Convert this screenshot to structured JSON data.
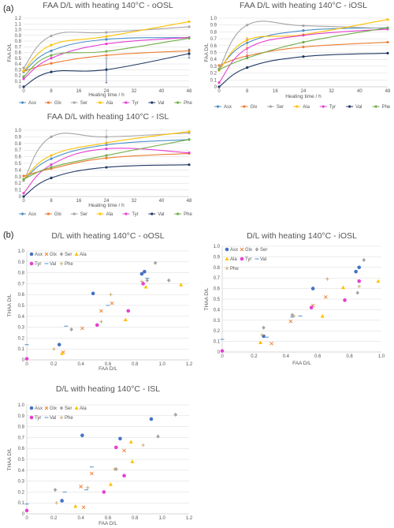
{
  "section_labels": [
    "(a)",
    "(b)"
  ],
  "colors": {
    "Asx": "#4a90c8",
    "Glx": "#ed7d31",
    "Ser": "#a5a5a5",
    "Ala": "#ffc000",
    "Tyr": "#e53fd3",
    "Val": "#203864",
    "Phe": "#70ad47",
    "ValB": "#5b9bd5",
    "AsxB": "#4472c4",
    "PheB": "#c9a86a"
  },
  "chart_data": [
    {
      "id": "a-oOSL",
      "type": "line",
      "title": "FAA D/L with heating 140°C - oOSL",
      "xlabel": "Heating time / h",
      "ylabel": "FAA D/L",
      "x": [
        0,
        8,
        24,
        48
      ],
      "xticks": [
        0,
        8,
        16,
        24,
        32,
        40,
        48
      ],
      "xlim": [
        0,
        48
      ],
      "ylim": [
        0,
        1.2
      ],
      "yticks": [
        0,
        0.1,
        0.2,
        0.3,
        0.4,
        0.5,
        0.6,
        0.7,
        0.8,
        0.9,
        1.0,
        1.1,
        1.2
      ],
      "legend_position": "bottom",
      "series": [
        {
          "name": "Asx",
          "values": [
            0.26,
            0.63,
            0.83,
            0.86
          ]
        },
        {
          "name": "Glx",
          "values": [
            0.27,
            0.41,
            0.55,
            0.63
          ]
        },
        {
          "name": "Ser",
          "values": [
            0.33,
            0.89,
            0.95,
            1.05
          ]
        },
        {
          "name": "Ala",
          "values": [
            0.28,
            0.73,
            0.88,
            1.14
          ]
        },
        {
          "name": "Tyr",
          "values": [
            0.14,
            0.5,
            0.75,
            0.86
          ]
        },
        {
          "name": "Val",
          "values": [
            0.0,
            0.26,
            0.3,
            0.58
          ]
        },
        {
          "name": "Phe",
          "values": [
            0.18,
            0.55,
            0.62,
            0.85
          ]
        }
      ],
      "error_bars": [
        {
          "series": "Val",
          "x": 24,
          "low": 0.07,
          "high": 0.5
        },
        {
          "series": "Val",
          "x": 48,
          "low": 0.5,
          "high": 0.66
        }
      ]
    },
    {
      "id": "a-iOSL",
      "type": "line",
      "title": "FAA D/L with heating 140°C - iOSL",
      "xlabel": "Heating time / h",
      "ylabel": "FAA D/L",
      "x": [
        0,
        8,
        24,
        48
      ],
      "xticks": [
        0,
        8,
        16,
        24,
        32,
        40,
        48
      ],
      "xlim": [
        0,
        48
      ],
      "ylim": [
        0,
        1.0
      ],
      "yticks": [
        0,
        0.1,
        0.2,
        0.3,
        0.4,
        0.5,
        0.6,
        0.7,
        0.8,
        0.9,
        1.0
      ],
      "legend_position": "bottom",
      "series": [
        {
          "name": "Asx",
          "values": [
            0.26,
            0.64,
            0.82,
            0.86
          ]
        },
        {
          "name": "Glx",
          "values": [
            0.31,
            0.45,
            0.58,
            0.65
          ]
        },
        {
          "name": "Ser",
          "values": [
            0.26,
            0.9,
            0.89,
            0.85
          ]
        },
        {
          "name": "Ala",
          "values": [
            0.24,
            0.68,
            0.76,
            0.98
          ]
        },
        {
          "name": "Tyr",
          "values": [
            0.06,
            0.56,
            0.75,
            0.84
          ]
        },
        {
          "name": "Val",
          "values": [
            0.0,
            0.28,
            0.44,
            0.49
          ]
        },
        {
          "name": "Phe",
          "values": [
            0.25,
            0.42,
            0.65,
            0.86
          ]
        }
      ],
      "error_bars": [
        {
          "series": "Tyr",
          "x": 8,
          "low": 0.44,
          "high": 0.7
        },
        {
          "series": "Ala",
          "x": 8,
          "low": 0.56,
          "high": 0.72
        }
      ]
    },
    {
      "id": "a-ISL",
      "type": "line",
      "title": "FAA D/L with heating 140°C - ISL",
      "xlabel": "Heating time / h",
      "ylabel": "",
      "x": [
        0,
        8,
        24,
        48
      ],
      "xticks": [
        0,
        8,
        16,
        24,
        32,
        40,
        48
      ],
      "xlim": [
        0,
        48
      ],
      "ylim": [
        0,
        1.0
      ],
      "yticks": [
        0,
        0.1,
        0.2,
        0.3,
        0.4,
        0.5,
        0.6,
        0.7,
        0.8,
        0.9,
        1.0
      ],
      "legend_position": "bottom",
      "series": [
        {
          "name": "Asx",
          "values": [
            0.25,
            0.57,
            0.78,
            0.86
          ]
        },
        {
          "name": "Glx",
          "values": [
            0.31,
            0.42,
            0.58,
            0.65
          ]
        },
        {
          "name": "Ser",
          "values": [
            0.24,
            0.9,
            0.9,
            0.96
          ]
        },
        {
          "name": "Ala",
          "values": [
            0.26,
            0.62,
            0.81,
            0.98
          ]
        },
        {
          "name": "Tyr",
          "values": [
            0.05,
            0.48,
            0.72,
            0.66
          ]
        },
        {
          "name": "Val",
          "values": [
            0.0,
            0.28,
            0.44,
            0.48
          ]
        },
        {
          "name": "Phe",
          "values": [
            0.26,
            0.44,
            0.62,
            0.86
          ]
        }
      ],
      "error_bars": [
        {
          "series": "Ser",
          "x": 24,
          "low": 0.78,
          "high": 1.0
        }
      ]
    },
    {
      "id": "b-oOSL",
      "type": "scatter",
      "title": "D/L with heating 140°C - oOSL",
      "xlabel": "FAA D/L",
      "ylabel": "THAA D/L",
      "xlim": [
        0,
        1.2
      ],
      "ylim": [
        0,
        1.0
      ],
      "xticks": [
        0,
        0.2,
        0.4,
        0.6,
        0.8,
        1.0,
        1.2
      ],
      "yticks": [
        0,
        0.1,
        0.2,
        0.3,
        0.4,
        0.5,
        0.6,
        0.7,
        0.8,
        0.9,
        1.0
      ],
      "legend_position": "top-left",
      "legend_rows": [
        [
          "Asx",
          "Glx",
          "Ser",
          "Ala"
        ],
        [
          "Tyr",
          "Val",
          "Phe"
        ]
      ],
      "series": [
        {
          "name": "Asx",
          "points": [
            [
              0.24,
              0.14
            ],
            [
              0.49,
              0.61
            ],
            [
              0.85,
              0.79
            ],
            [
              0.87,
              0.81
            ]
          ]
        },
        {
          "name": "Glx",
          "points": [
            [
              0.27,
              0.07
            ],
            [
              0.41,
              0.29
            ],
            [
              0.55,
              0.45
            ],
            [
              0.63,
              0.52
            ]
          ]
        },
        {
          "name": "Ser",
          "points": [
            [
              0.33,
              0.28
            ],
            [
              0.89,
              0.73
            ],
            [
              0.95,
              0.89
            ],
            [
              1.05,
              0.73
            ]
          ]
        },
        {
          "name": "Ala",
          "points": [
            [
              0.26,
              0.06
            ],
            [
              0.73,
              0.37
            ],
            [
              0.88,
              0.67
            ],
            [
              1.14,
              0.69
            ]
          ]
        },
        {
          "name": "Tyr",
          "points": [
            [
              0.0,
              0.01
            ],
            [
              0.52,
              0.32
            ],
            [
              0.75,
              0.45
            ],
            [
              0.86,
              0.7
            ]
          ]
        },
        {
          "name": "Val",
          "points": [
            [
              0.0,
              0.14
            ],
            [
              0.29,
              0.31
            ],
            [
              0.6,
              0.5
            ],
            [
              0.89,
              0.75
            ]
          ]
        },
        {
          "name": "Phe",
          "points": [
            [
              0.2,
              0.1
            ],
            [
              0.55,
              0.35
            ],
            [
              0.62,
              0.6
            ],
            [
              0.85,
              0.72
            ]
          ]
        }
      ]
    },
    {
      "id": "b-iOSL",
      "type": "scatter",
      "title": "D/L with heating 140°C - iOSL",
      "xlabel": "FAA D/L",
      "ylabel": "THAA D/L",
      "xlim": [
        0,
        1.0
      ],
      "ylim": [
        0,
        1.0
      ],
      "xticks": [
        0,
        0.2,
        0.4,
        0.6,
        0.8,
        1.0
      ],
      "yticks": [
        0,
        0.1,
        0.2,
        0.3,
        0.4,
        0.5,
        0.6,
        0.7,
        0.8,
        0.9,
        1.0
      ],
      "legend_position": "top-left",
      "legend_rows": [
        [
          "Asx",
          "Glx",
          "Ser"
        ],
        [
          "Ala",
          "Tyr",
          "Val"
        ],
        [
          "Phe"
        ]
      ],
      "series": [
        {
          "name": "Asx",
          "points": [
            [
              0.26,
              0.15
            ],
            [
              0.57,
              0.6
            ],
            [
              0.84,
              0.76
            ],
            [
              0.86,
              0.8
            ]
          ]
        },
        {
          "name": "Glx",
          "points": [
            [
              0.31,
              0.08
            ],
            [
              0.43,
              0.29
            ],
            [
              0.65,
              0.52
            ],
            [
              0.57,
              0.44
            ]
          ]
        },
        {
          "name": "Ser",
          "points": [
            [
              0.26,
              0.23
            ],
            [
              0.44,
              0.35
            ],
            [
              0.89,
              0.87
            ],
            [
              0.85,
              0.56
            ]
          ]
        },
        {
          "name": "Ala",
          "points": [
            [
              0.24,
              0.09
            ],
            [
              0.63,
              0.34
            ],
            [
              0.76,
              0.61
            ],
            [
              0.98,
              0.67
            ]
          ]
        },
        {
          "name": "Tyr",
          "points": [
            [
              0.0,
              0.01
            ],
            [
              0.56,
              0.42
            ],
            [
              0.77,
              0.49
            ],
            [
              0.86,
              0.67
            ]
          ]
        },
        {
          "name": "Val",
          "points": [
            [
              0.0,
              0.12
            ],
            [
              0.28,
              0.14
            ],
            [
              0.44,
              0.33
            ],
            [
              0.49,
              0.34
            ]
          ]
        },
        {
          "name": "Phe",
          "points": [
            [
              0.25,
              0.16
            ],
            [
              0.45,
              0.34
            ],
            [
              0.66,
              0.69
            ],
            [
              0.86,
              0.62
            ]
          ]
        }
      ]
    },
    {
      "id": "b-ISL",
      "type": "scatter",
      "title": "D/L with heating 140°C - ISL",
      "xlabel": "FAA D/L",
      "ylabel": "THAA D/L",
      "xlim": [
        0,
        1.2
      ],
      "ylim": [
        0,
        1.0
      ],
      "xticks": [
        0,
        0.2,
        0.4,
        0.6,
        0.8,
        1.0,
        1.2
      ],
      "yticks": [
        0,
        0.1,
        0.2,
        0.3,
        0.4,
        0.5,
        0.6,
        0.7,
        0.8,
        0.9,
        1.0
      ],
      "legend_position": "top-left",
      "legend_rows": [
        [
          "Asx",
          "Glx",
          "Ser",
          "Ala"
        ],
        [
          "Tyr",
          "Val",
          "Phe"
        ]
      ],
      "series": [
        {
          "name": "Asx",
          "points": [
            [
              0.26,
              0.12
            ],
            [
              0.41,
              0.72
            ],
            [
              0.69,
              0.69
            ],
            [
              0.92,
              0.87
            ]
          ]
        },
        {
          "name": "Glx",
          "points": [
            [
              0.42,
              0.06
            ],
            [
              0.4,
              0.25
            ],
            [
              0.48,
              0.37
            ],
            [
              0.72,
              0.58
            ]
          ]
        },
        {
          "name": "Ser",
          "points": [
            [
              0.21,
              0.22
            ],
            [
              0.66,
              0.41
            ],
            [
              0.97,
              0.71
            ],
            [
              1.1,
              0.91
            ]
          ]
        },
        {
          "name": "Ala",
          "points": [
            [
              0.36,
              0.07
            ],
            [
              0.62,
              0.27
            ],
            [
              0.78,
              0.48
            ],
            [
              0.77,
              0.66
            ]
          ]
        },
        {
          "name": "Tyr",
          "points": [
            [
              0.0,
              0.03
            ],
            [
              0.57,
              0.2
            ],
            [
              0.72,
              0.35
            ],
            [
              0.66,
              0.61
            ]
          ]
        },
        {
          "name": "Val",
          "points": [
            [
              0.0,
              0.09
            ],
            [
              0.28,
              0.2
            ],
            [
              0.44,
              0.22
            ],
            [
              0.48,
              0.43
            ]
          ]
        },
        {
          "name": "Phe",
          "points": [
            [
              0.22,
              0.1
            ],
            [
              0.45,
              0.24
            ],
            [
              0.65,
              0.41
            ],
            [
              0.86,
              0.63
            ]
          ]
        }
      ]
    }
  ]
}
